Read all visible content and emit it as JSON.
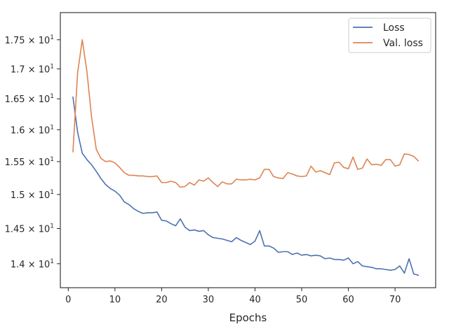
{
  "chart_data": {
    "type": "line",
    "title": "",
    "xlabel": "Epochs",
    "ylabel": "",
    "yscale": "log",
    "xlim": [
      -1.7,
      78.7
    ],
    "ylim": [
      13.67,
      17.98
    ],
    "xticks": [
      0,
      10,
      20,
      30,
      40,
      50,
      60,
      70
    ],
    "xtick_labels": [
      "0",
      "10",
      "20",
      "30",
      "40",
      "50",
      "60",
      "70"
    ],
    "yticks": [
      14.0,
      14.5,
      15.0,
      15.5,
      16.0,
      16.5,
      17.0,
      17.5
    ],
    "ytick_labels": [
      {
        "mantissa": "1.4",
        "exp": "1"
      },
      {
        "mantissa": "1.45",
        "exp": "1"
      },
      {
        "mantissa": "1.5",
        "exp": "1"
      },
      {
        "mantissa": "1.55",
        "exp": "1"
      },
      {
        "mantissa": "1.6",
        "exp": "1"
      },
      {
        "mantissa": "1.65",
        "exp": "1"
      },
      {
        "mantissa": "1.7",
        "exp": "1"
      },
      {
        "mantissa": "1.75",
        "exp": "1"
      }
    ],
    "grid": false,
    "legend_position": "top-right",
    "x": [
      1,
      2,
      3,
      4,
      5,
      6,
      7,
      8,
      9,
      10,
      11,
      12,
      13,
      14,
      15,
      16,
      17,
      18,
      19,
      20,
      21,
      22,
      23,
      24,
      25,
      26,
      27,
      28,
      29,
      30,
      31,
      32,
      33,
      34,
      35,
      36,
      37,
      38,
      39,
      40,
      41,
      42,
      43,
      44,
      45,
      46,
      47,
      48,
      49,
      50,
      51,
      52,
      53,
      54,
      55,
      56,
      57,
      58,
      59,
      60,
      61,
      62,
      63,
      64,
      65,
      66,
      67,
      68,
      69,
      70,
      71,
      72,
      73,
      74,
      75
    ],
    "series": [
      {
        "name": "Loss",
        "color": "#4c72b0",
        "values": [
          16.53,
          15.96,
          15.63,
          15.53,
          15.45,
          15.35,
          15.24,
          15.15,
          15.09,
          15.05,
          14.99,
          14.89,
          14.85,
          14.79,
          14.75,
          14.72,
          14.73,
          14.73,
          14.74,
          14.62,
          14.61,
          14.57,
          14.54,
          14.64,
          14.52,
          14.47,
          14.48,
          14.46,
          14.47,
          14.41,
          14.37,
          14.36,
          14.35,
          14.33,
          14.31,
          14.37,
          14.33,
          14.3,
          14.27,
          14.32,
          14.47,
          14.25,
          14.25,
          14.22,
          14.16,
          14.17,
          14.17,
          14.13,
          14.15,
          14.12,
          14.13,
          14.11,
          14.12,
          14.11,
          14.07,
          14.08,
          14.06,
          14.06,
          14.05,
          14.08,
          14.0,
          14.03,
          13.97,
          13.96,
          13.95,
          13.93,
          13.93,
          13.92,
          13.91,
          13.92,
          13.97,
          13.87,
          14.07,
          13.86,
          13.84
        ]
      },
      {
        "name": "Val. loss",
        "color": "#dd8452",
        "values": [
          15.65,
          16.93,
          17.5,
          16.95,
          16.2,
          15.69,
          15.55,
          15.5,
          15.51,
          15.48,
          15.41,
          15.33,
          15.29,
          15.29,
          15.28,
          15.28,
          15.27,
          15.27,
          15.28,
          15.18,
          15.18,
          15.2,
          15.18,
          15.11,
          15.12,
          15.18,
          15.14,
          15.22,
          15.2,
          15.25,
          15.18,
          15.12,
          15.19,
          15.16,
          15.16,
          15.23,
          15.22,
          15.22,
          15.23,
          15.22,
          15.25,
          15.38,
          15.38,
          15.27,
          15.25,
          15.24,
          15.33,
          15.31,
          15.28,
          15.27,
          15.28,
          15.43,
          15.34,
          15.36,
          15.33,
          15.3,
          15.48,
          15.49,
          15.41,
          15.39,
          15.57,
          15.38,
          15.4,
          15.54,
          15.45,
          15.46,
          15.44,
          15.53,
          15.53,
          15.43,
          15.45,
          15.62,
          15.61,
          15.58,
          15.51
        ]
      }
    ]
  }
}
